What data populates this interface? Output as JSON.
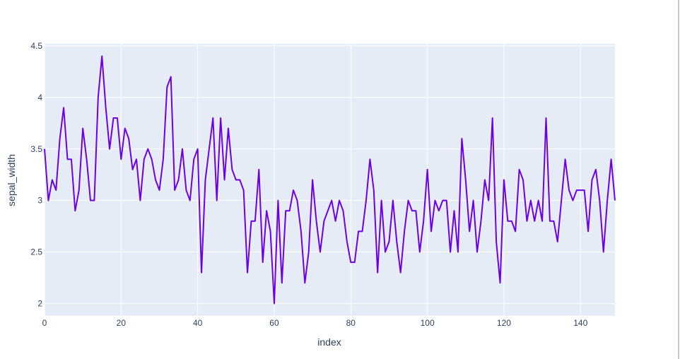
{
  "chart_data": {
    "type": "line",
    "title": "",
    "xlabel": "index",
    "ylabel": "sepal_width",
    "xlim": [
      0,
      149
    ],
    "ylim": [
      1.88,
      4.52
    ],
    "grid": true,
    "legend": "none",
    "x_ticks": [
      0,
      20,
      40,
      60,
      80,
      100,
      120,
      140
    ],
    "y_ticks": [
      2,
      2.5,
      3,
      3.5,
      4,
      4.5
    ],
    "y_tick_labels": [
      "2",
      "2.5",
      "3",
      "3.5",
      "4",
      "4.5"
    ],
    "colors": {
      "line": "#6d00e6",
      "plot_bg": "#e5ecf6",
      "grid": "#ffffff",
      "text": "#2a3f5f"
    },
    "series": [
      {
        "name": "sepal_width",
        "values": [
          3.5,
          3.0,
          3.2,
          3.1,
          3.6,
          3.9,
          3.4,
          3.4,
          2.9,
          3.1,
          3.7,
          3.4,
          3.0,
          3.0,
          4.0,
          4.4,
          3.9,
          3.5,
          3.8,
          3.8,
          3.4,
          3.7,
          3.6,
          3.3,
          3.4,
          3.0,
          3.4,
          3.5,
          3.4,
          3.2,
          3.1,
          3.4,
          4.1,
          4.2,
          3.1,
          3.2,
          3.5,
          3.1,
          3.0,
          3.4,
          3.5,
          2.3,
          3.2,
          3.5,
          3.8,
          3.0,
          3.8,
          3.2,
          3.7,
          3.3,
          3.2,
          3.2,
          3.1,
          2.3,
          2.8,
          2.8,
          3.3,
          2.4,
          2.9,
          2.7,
          2.0,
          3.0,
          2.2,
          2.9,
          2.9,
          3.1,
          3.0,
          2.7,
          2.2,
          2.5,
          3.2,
          2.8,
          2.5,
          2.8,
          2.9,
          3.0,
          2.8,
          3.0,
          2.9,
          2.6,
          2.4,
          2.4,
          2.7,
          2.7,
          3.0,
          3.4,
          3.1,
          2.3,
          3.0,
          2.5,
          2.6,
          3.0,
          2.6,
          2.3,
          2.7,
          3.0,
          2.9,
          2.9,
          2.5,
          2.8,
          3.3,
          2.7,
          3.0,
          2.9,
          3.0,
          3.0,
          2.5,
          2.9,
          2.5,
          3.6,
          3.2,
          2.7,
          3.0,
          2.5,
          2.8,
          3.2,
          3.0,
          3.8,
          2.6,
          2.2,
          3.2,
          2.8,
          2.8,
          2.7,
          3.3,
          3.2,
          2.8,
          3.0,
          2.8,
          3.0,
          2.8,
          3.8,
          2.8,
          2.8,
          2.6,
          3.0,
          3.4,
          3.1,
          3.0,
          3.1,
          3.1,
          3.1,
          2.7,
          3.2,
          3.3,
          3.0,
          2.5,
          3.0,
          3.4,
          3.0
        ]
      }
    ]
  }
}
